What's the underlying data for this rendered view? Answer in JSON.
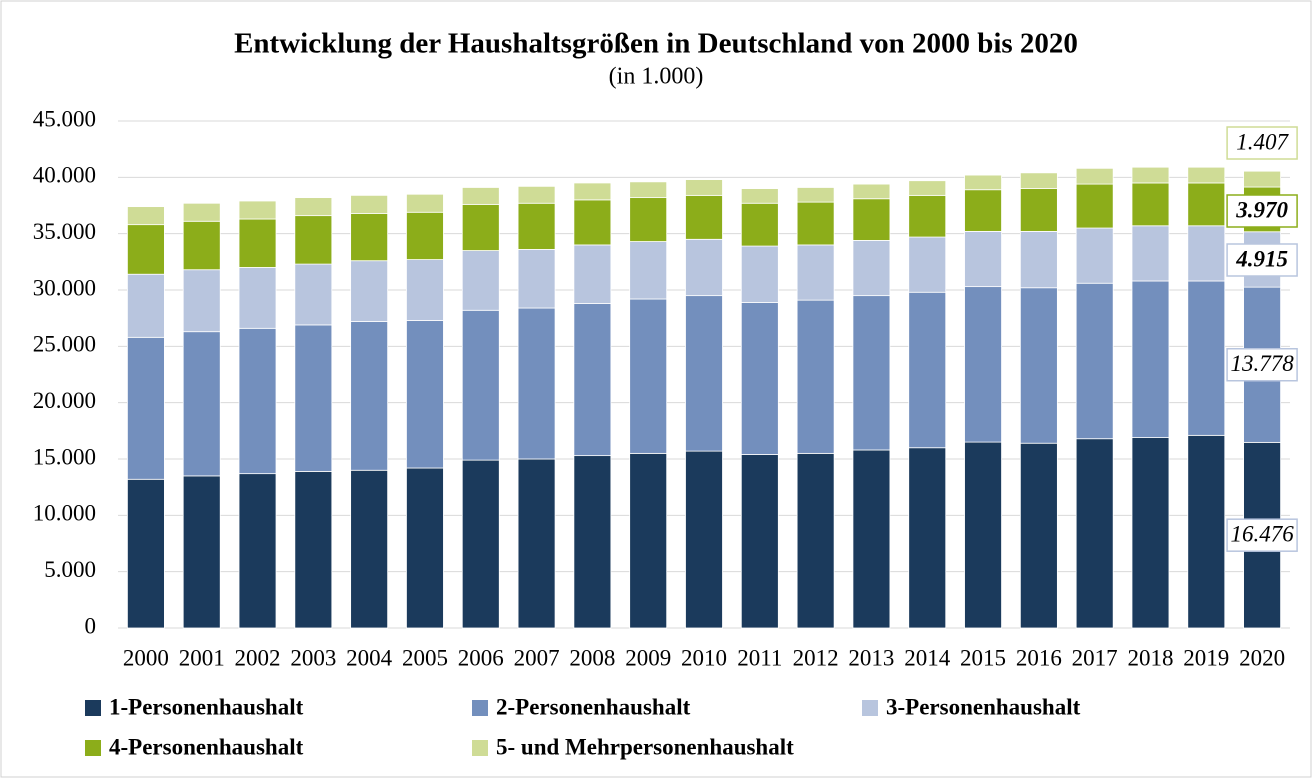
{
  "chart_data": {
    "type": "stacked_bar",
    "title": "Entwicklung der Haushaltsgrößen in Deutschland von 2000 bis 2020",
    "subtitle": "(in 1.000)",
    "categories": [
      "2000",
      "2001",
      "2002",
      "2003",
      "2004",
      "2005",
      "2006",
      "2007",
      "2008",
      "2009",
      "2010",
      "2011",
      "2012",
      "2013",
      "2014",
      "2015",
      "2016",
      "2017",
      "2018",
      "2019",
      "2020"
    ],
    "series": [
      {
        "name": "1-Personenhaushalt",
        "color": "#1b3a5c",
        "values": [
          13200,
          13500,
          13700,
          13900,
          14000,
          14200,
          14900,
          15000,
          15300,
          15500,
          15700,
          15400,
          15500,
          15800,
          16000,
          16500,
          16400,
          16800,
          16900,
          17100,
          16476
        ],
        "value_labels": [
          null,
          null,
          null,
          null,
          null,
          null,
          null,
          null,
          null,
          null,
          null,
          null,
          null,
          null,
          null,
          null,
          null,
          null,
          null,
          null,
          "16.476"
        ]
      },
      {
        "name": "2-Personenhaushalt",
        "color": "#738fbd",
        "values": [
          12600,
          12800,
          12900,
          13000,
          13200,
          13100,
          13300,
          13400,
          13500,
          13700,
          13800,
          13500,
          13600,
          13700,
          13800,
          13800,
          13800,
          13800,
          13900,
          13700,
          13778
        ],
        "value_labels": [
          null,
          null,
          null,
          null,
          null,
          null,
          null,
          null,
          null,
          null,
          null,
          null,
          null,
          null,
          null,
          null,
          null,
          null,
          null,
          null,
          "13.778"
        ]
      },
      {
        "name": "3-Personenhaushalt",
        "color": "#b8c5de",
        "values": [
          5600,
          5500,
          5400,
          5400,
          5400,
          5400,
          5300,
          5200,
          5200,
          5100,
          5000,
          5000,
          4900,
          4900,
          4900,
          4900,
          5000,
          4900,
          4900,
          4900,
          4915
        ],
        "value_labels": [
          null,
          null,
          null,
          null,
          null,
          null,
          null,
          null,
          null,
          null,
          null,
          null,
          null,
          null,
          null,
          null,
          null,
          null,
          null,
          null,
          "4.915"
        ]
      },
      {
        "name": "4-Personenhaushalt",
        "color": "#8cad1a",
        "values": [
          4400,
          4300,
          4300,
          4300,
          4200,
          4200,
          4100,
          4100,
          4000,
          3900,
          3900,
          3800,
          3800,
          3700,
          3700,
          3700,
          3800,
          3900,
          3800,
          3800,
          3970
        ],
        "value_labels": [
          null,
          null,
          null,
          null,
          null,
          null,
          null,
          null,
          null,
          null,
          null,
          null,
          null,
          null,
          null,
          null,
          null,
          null,
          null,
          null,
          "3.970"
        ]
      },
      {
        "name": "5- und Mehrpersonenhaushalt",
        "color": "#cfdc96",
        "values": [
          1600,
          1600,
          1600,
          1600,
          1600,
          1600,
          1500,
          1500,
          1500,
          1400,
          1400,
          1300,
          1300,
          1300,
          1300,
          1300,
          1400,
          1400,
          1400,
          1400,
          1407
        ],
        "value_labels": [
          null,
          null,
          null,
          null,
          null,
          null,
          null,
          null,
          null,
          null,
          null,
          null,
          null,
          null,
          null,
          null,
          null,
          null,
          null,
          null,
          "1.407"
        ]
      }
    ],
    "ylim": [
      0,
      45000
    ],
    "yticks": [
      0,
      {
        "value": 5000,
        "label": "5.000"
      },
      {
        "value": 10000,
        "label": "10.000"
      },
      {
        "value": 15000,
        "label": "15.000"
      },
      {
        "value": 20000,
        "label": "20.000"
      },
      {
        "value": 25000,
        "label": "25.000"
      },
      {
        "value": 30000,
        "label": "30.000"
      },
      {
        "value": 35000,
        "label": "35.000"
      },
      {
        "value": 40000,
        "label": "40.000"
      },
      {
        "value": 45000,
        "label": "45.000"
      }
    ],
    "grid": true,
    "legend": "bottom"
  }
}
